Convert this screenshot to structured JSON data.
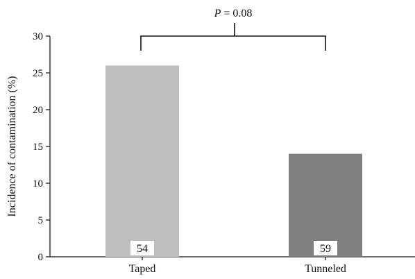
{
  "chart_data": {
    "type": "bar",
    "categories": [
      "Taped",
      "Tunneled"
    ],
    "values": [
      26,
      14
    ],
    "sample_sizes": [
      "54",
      "59"
    ],
    "bar_colors": [
      "#bfbfbf",
      "#7f7f7f"
    ],
    "ylabel": "Incidence of contamination (%)",
    "xlabel": "",
    "ylim": [
      0,
      30
    ],
    "yticks": [
      "0",
      "5",
      "10",
      "15",
      "20",
      "25",
      "30"
    ],
    "annotation": {
      "p_symbol": "P",
      "p_text": " = 0.08"
    },
    "grid": false
  }
}
